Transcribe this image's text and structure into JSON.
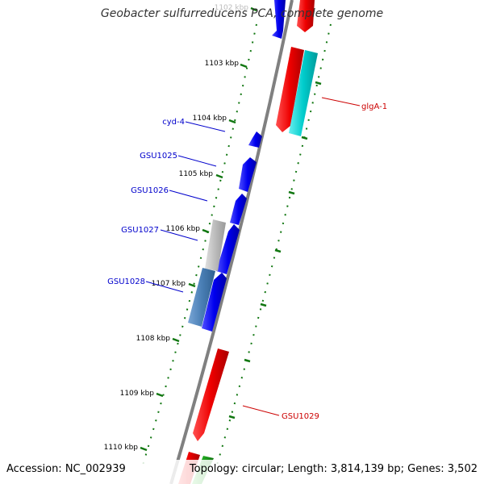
{
  "title": "Geobacter sulfurreducens PCA, complete genome",
  "accession": "Accession: NC_002939",
  "summary": "Topology: circular; Length: 3,814,139 bp; Genes: 3,502",
  "tick_labels": [
    "1102 kbp",
    "1103 kbp",
    "1104 kbp",
    "1105 kbp",
    "1106 kbp",
    "1107 kbp",
    "1108 kbp",
    "1109 kbp",
    "1110 kbp"
  ],
  "reverse_genes": [
    "cyd-4",
    "GSU1025",
    "GSU1026",
    "GSU1027",
    "GSU1028"
  ],
  "forward_genes": [
    "glgA-1",
    "GSU1029"
  ],
  "colors": {
    "reverse_label": "#0000cc",
    "forward_label": "#cc0000",
    "blue_gene": "#0000ee",
    "red_gene": "#ee0000",
    "cyan_gene": "#00cccc",
    "gray_gene": "#bbbbbb",
    "steel_gene": "#4a7fb5",
    "green_gene": "#22aa22",
    "backbone": "#808080",
    "tick": "#117711"
  }
}
